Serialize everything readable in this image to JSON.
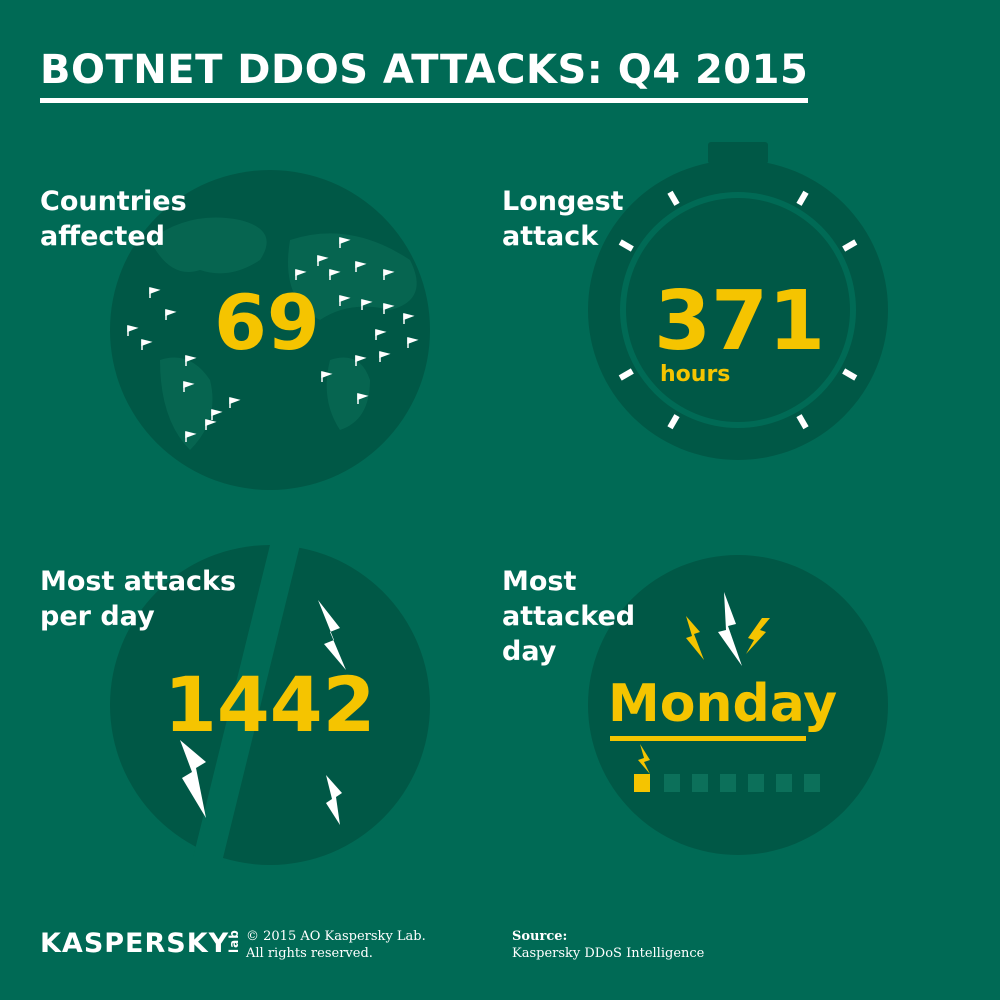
{
  "title": "BOTNET DDOS ATTACKS: Q4 2015",
  "colors": {
    "background": "#006a55",
    "circle": "#005846",
    "accent": "#f5c400",
    "text": "#ffffff"
  },
  "panels": {
    "countries": {
      "label_line1": "Countries",
      "label_line2": "affected",
      "value": "69",
      "icon": "globe-with-flags"
    },
    "longest": {
      "label_line1": "Longest",
      "label_line2": "attack",
      "value": "371",
      "unit": "hours",
      "icon": "stopwatch"
    },
    "most_per_day": {
      "label_line1": "Most attacks",
      "label_line2": "per day",
      "value": "1442",
      "icon": "lightning-bolts"
    },
    "most_day": {
      "label_line1": "Most",
      "label_line2": "attacked",
      "label_line3": "day",
      "value": "Monday",
      "icon": "calendar-bolts"
    }
  },
  "footer": {
    "logo": "KASPERSKY",
    "logo_suffix": "lab",
    "copyright_line1": "© 2015 AO Kaspersky Lab.",
    "copyright_line2": "All rights reserved.",
    "source_label": "Source:",
    "source_value": "Kaspersky DDoS Intelligence"
  }
}
